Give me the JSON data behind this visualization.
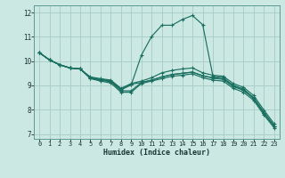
{
  "xlabel": "Humidex (Indice chaleur)",
  "xlim": [
    -0.5,
    23.5
  ],
  "ylim": [
    6.8,
    12.3
  ],
  "yticks": [
    7,
    8,
    9,
    10,
    11,
    12
  ],
  "xticks": [
    0,
    1,
    2,
    3,
    4,
    5,
    6,
    7,
    8,
    9,
    10,
    11,
    12,
    13,
    14,
    15,
    16,
    17,
    18,
    19,
    20,
    21,
    22,
    23
  ],
  "background_color": "#cce8e3",
  "grid_color": "#aacfcb",
  "line_color": "#1a7060",
  "lines": [
    {
      "x": [
        0,
        1,
        2,
        3,
        4,
        5,
        6,
        7,
        8,
        9,
        10,
        11,
        12,
        13,
        14,
        15,
        16,
        17,
        18,
        19,
        20,
        21,
        22,
        23
      ],
      "y": [
        10.35,
        10.05,
        9.85,
        9.72,
        9.68,
        9.3,
        9.22,
        9.18,
        8.82,
        9.02,
        10.25,
        11.02,
        11.48,
        11.48,
        11.72,
        11.88,
        11.5,
        9.38,
        9.32,
        9.0,
        8.85,
        8.48,
        7.88,
        7.33
      ]
    },
    {
      "x": [
        0,
        1,
        2,
        3,
        4,
        5,
        6,
        7,
        8,
        9,
        10,
        11,
        12,
        13,
        14,
        15,
        16,
        17,
        18,
        19,
        20,
        21,
        22,
        23
      ],
      "y": [
        10.35,
        10.05,
        9.85,
        9.72,
        9.68,
        9.32,
        9.25,
        9.2,
        8.85,
        9.05,
        9.12,
        9.22,
        9.35,
        9.45,
        9.5,
        9.55,
        9.4,
        9.3,
        9.25,
        8.95,
        8.8,
        8.45,
        7.85,
        7.32
      ]
    },
    {
      "x": [
        0,
        1,
        2,
        3,
        4,
        5,
        6,
        7,
        8,
        9,
        10,
        11,
        12,
        13,
        14,
        15,
        16,
        17,
        18,
        19,
        20,
        21,
        22,
        23
      ],
      "y": [
        10.35,
        10.05,
        9.85,
        9.72,
        9.68,
        9.32,
        9.22,
        9.15,
        8.78,
        8.78,
        9.12,
        9.22,
        9.35,
        9.45,
        9.5,
        9.55,
        9.4,
        9.32,
        9.28,
        9.0,
        8.82,
        8.48,
        7.88,
        7.33
      ]
    },
    {
      "x": [
        0,
        1,
        2,
        3,
        4,
        5,
        6,
        7,
        8,
        9,
        10,
        11,
        12,
        13,
        14,
        15,
        16,
        17,
        18,
        19,
        20,
        21,
        22,
        23
      ],
      "y": [
        10.35,
        10.05,
        9.85,
        9.72,
        9.68,
        9.35,
        9.28,
        9.22,
        8.88,
        9.08,
        9.18,
        9.32,
        9.52,
        9.62,
        9.68,
        9.72,
        9.52,
        9.42,
        9.38,
        9.08,
        8.92,
        8.58,
        7.98,
        7.42
      ]
    },
    {
      "x": [
        0,
        1,
        2,
        3,
        4,
        5,
        6,
        7,
        8,
        9,
        10,
        11,
        12,
        13,
        14,
        15,
        16,
        17,
        18,
        19,
        20,
        21,
        22,
        23
      ],
      "y": [
        10.35,
        10.05,
        9.85,
        9.72,
        9.68,
        9.28,
        9.18,
        9.1,
        8.72,
        8.72,
        9.08,
        9.18,
        9.28,
        9.38,
        9.42,
        9.48,
        9.32,
        9.22,
        9.18,
        8.88,
        8.72,
        8.38,
        7.78,
        7.25
      ]
    }
  ]
}
